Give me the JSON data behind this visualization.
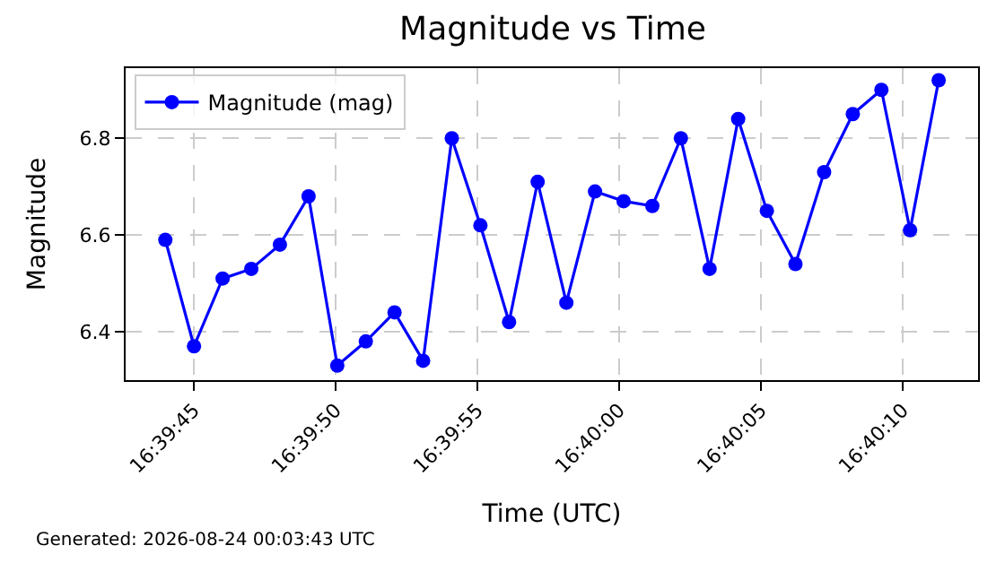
{
  "chart_data": {
    "type": "line",
    "title": "Magnitude vs Time",
    "xlabel": "Time (UTC)",
    "ylabel": "Magnitude",
    "x": [
      16.662222,
      16.662503,
      16.662783,
      16.663064,
      16.663344,
      16.663625,
      16.663906,
      16.664186,
      16.664467,
      16.664747,
      16.665028,
      16.665308,
      16.665589,
      16.665869,
      16.66615,
      16.666431,
      16.666711,
      16.666992,
      16.667272,
      16.667553,
      16.667833,
      16.668114,
      16.668394,
      16.668675,
      16.668956,
      16.669236,
      16.669517,
      16.669797
    ],
    "series": [
      {
        "name": "Magnitude (mag)",
        "color": "#0000ff",
        "values": [
          6.59,
          6.37,
          6.51,
          6.53,
          6.58,
          6.68,
          6.33,
          6.38,
          6.44,
          6.34,
          6.8,
          6.62,
          6.42,
          6.71,
          6.46,
          6.69,
          6.67,
          6.66,
          6.8,
          6.53,
          6.84,
          6.65,
          6.54,
          6.73,
          6.85,
          6.9,
          6.61,
          6.92
        ]
      }
    ],
    "xlim": [
      16.661833,
      16.670183
    ],
    "xticks": [
      {
        "value": 16.6625,
        "label": "16:39:45"
      },
      {
        "value": 16.663889,
        "label": "16:39:50"
      },
      {
        "value": 16.665278,
        "label": "16:39:55"
      },
      {
        "value": 16.666667,
        "label": "16:40:00"
      },
      {
        "value": 16.668056,
        "label": "16:40:05"
      },
      {
        "value": 16.669444,
        "label": "16:40:10"
      }
    ],
    "ylim": [
      6.3,
      6.945
    ],
    "yticks": [
      6.4,
      6.6,
      6.8
    ],
    "grid": true,
    "legend": "top left",
    "marker": "circle",
    "line_style": "solid",
    "annotations": [
      "Generated: 2026-08-24 00:03:43 UTC"
    ]
  }
}
